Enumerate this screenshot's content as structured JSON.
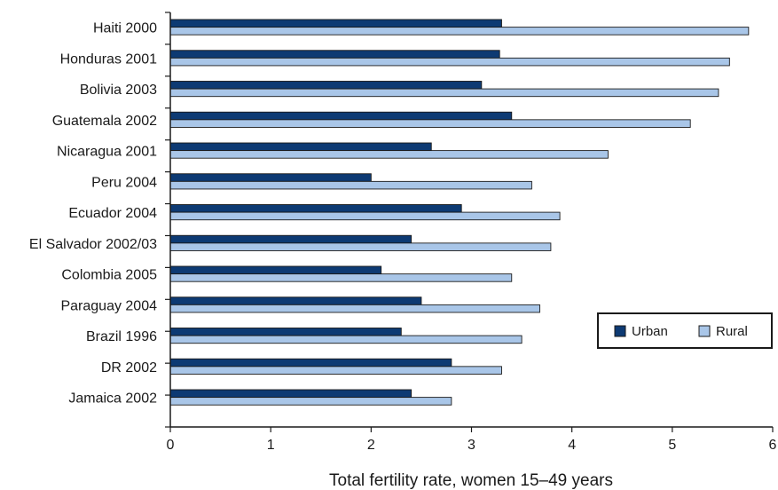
{
  "chart_data": {
    "type": "bar",
    "orientation": "horizontal",
    "title": "",
    "xlabel": "Total fertility rate, women 15–49 years",
    "ylabel": "",
    "xlim": [
      0,
      6
    ],
    "xticks": [
      "0",
      "1",
      "2",
      "3",
      "4",
      "5",
      "6"
    ],
    "grid": false,
    "legend_position": "bottom-right",
    "categories": [
      "Haiti 2000",
      "Honduras 2001",
      "Bolivia 2003",
      "Guatemala 2002",
      "Nicaragua 2001",
      "Peru 2004",
      "Ecuador 2004",
      "El Salvador 2002/03",
      "Colombia 2005",
      "Paraguay 2004",
      "Brazil 1996",
      "DR 2002",
      "Jamaica 2002"
    ],
    "series": [
      {
        "name": "Urban",
        "color": "#0d3a73",
        "values": [
          3.3,
          3.28,
          3.1,
          3.4,
          2.6,
          2.0,
          2.9,
          2.4,
          2.1,
          2.5,
          2.3,
          2.8,
          2.4
        ]
      },
      {
        "name": "Rural",
        "color": "#a9c6e8",
        "values": [
          5.76,
          5.57,
          5.46,
          5.18,
          4.36,
          3.6,
          3.88,
          3.79,
          3.4,
          3.68,
          3.5,
          3.3,
          2.8
        ]
      }
    ]
  }
}
